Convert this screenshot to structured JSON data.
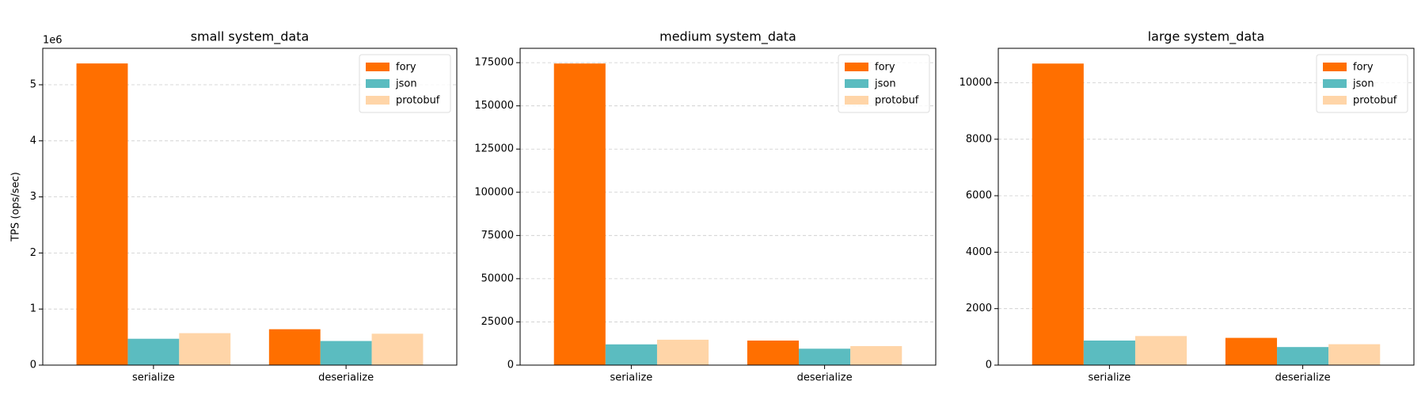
{
  "chart_data": [
    {
      "type": "bar",
      "title": "small system_data",
      "ylabel": "TPS (ops/sec)",
      "y_offset_label": "1e6",
      "categories": [
        "serialize",
        "deserialize"
      ],
      "series": [
        {
          "name": "fory",
          "color": "#ff6f00",
          "values": [
            5.38,
            0.64
          ]
        },
        {
          "name": "json",
          "color": "#5bbcc0",
          "values": [
            0.47,
            0.43
          ]
        },
        {
          "name": "protobuf",
          "color": "#ffd5a8",
          "values": [
            0.57,
            0.56
          ]
        }
      ],
      "ylim": [
        0,
        5.65
      ],
      "yticks": [
        0,
        1,
        2,
        3,
        4,
        5
      ],
      "grid": true,
      "legend": "upper right"
    },
    {
      "type": "bar",
      "title": "medium system_data",
      "categories": [
        "serialize",
        "deserialize"
      ],
      "series": [
        {
          "name": "fory",
          "color": "#ff6f00",
          "values": [
            174500,
            14200
          ]
        },
        {
          "name": "json",
          "color": "#5bbcc0",
          "values": [
            12000,
            9500
          ]
        },
        {
          "name": "protobuf",
          "color": "#ffd5a8",
          "values": [
            14700,
            11000
          ]
        }
      ],
      "ylim": [
        0,
        183300
      ],
      "yticks": [
        0,
        25000,
        50000,
        75000,
        100000,
        125000,
        150000,
        175000
      ],
      "grid": true,
      "legend": "upper right"
    },
    {
      "type": "bar",
      "title": "large system_data",
      "categories": [
        "serialize",
        "deserialize"
      ],
      "series": [
        {
          "name": "fory",
          "color": "#ff6f00",
          "values": [
            10680,
            965
          ]
        },
        {
          "name": "json",
          "color": "#5bbcc0",
          "values": [
            870,
            640
          ]
        },
        {
          "name": "protobuf",
          "color": "#ffd5a8",
          "values": [
            1030,
            740
          ]
        }
      ],
      "ylim": [
        0,
        11220
      ],
      "yticks": [
        0,
        2000,
        4000,
        6000,
        8000,
        10000
      ],
      "grid": true,
      "legend": "upper right"
    }
  ]
}
